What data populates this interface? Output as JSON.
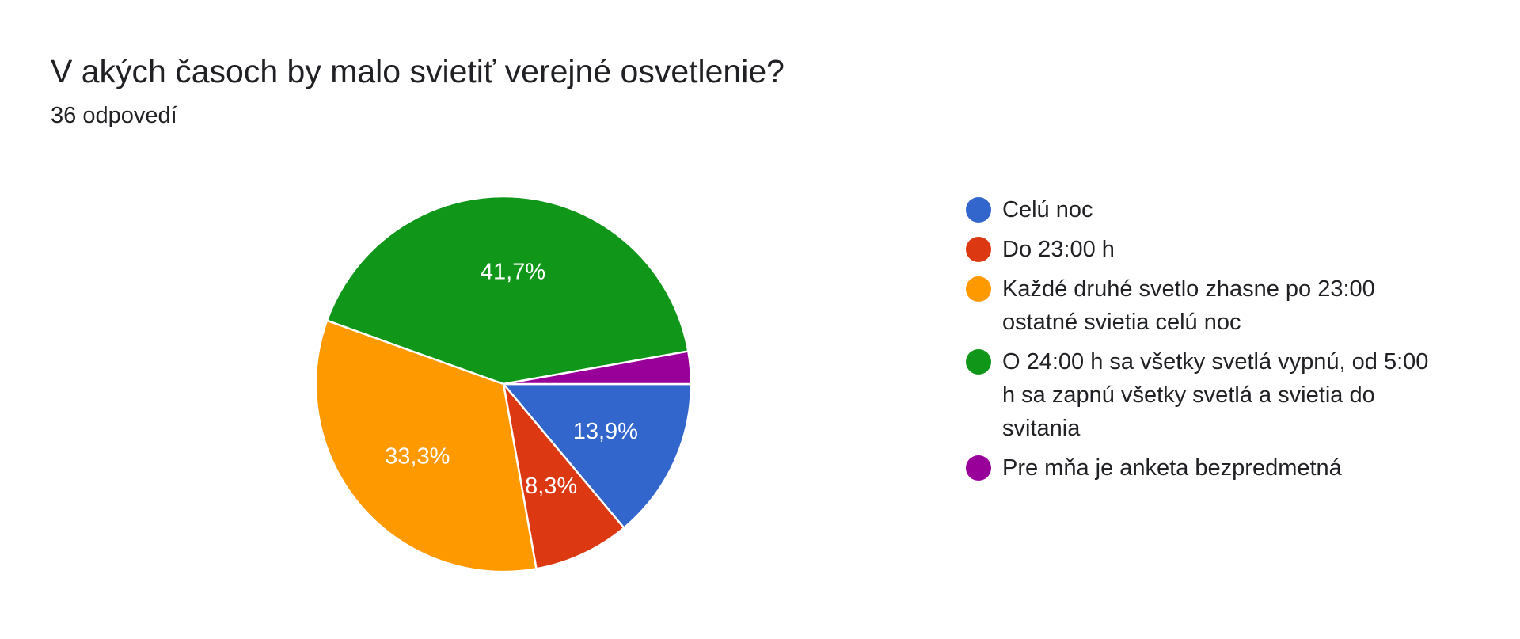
{
  "header": {
    "title": "V akých časoch by malo svietiť verejné osvetlenie?",
    "subtitle": "36 odpovedí"
  },
  "chart_data": {
    "type": "pie",
    "title": "V akých časoch by malo svietiť verejné osvetlenie?",
    "subtitle": "36 odpovedí",
    "legend_position": "right",
    "slices": [
      {
        "label": "Celú noc",
        "value": 13.9,
        "display": "13,9%",
        "color": "#3366cc"
      },
      {
        "label": "Do 23:00 h",
        "value": 8.3,
        "display": "8,3%",
        "color": "#dc3912"
      },
      {
        "label": "Každé druhé svetlo zhasne po 23:00 ostatné svietia celú noc",
        "value": 33.3,
        "display": "33,3%",
        "color": "#ff9900"
      },
      {
        "label": "O 24:00 h sa všetky svetlá vypnú, od 5:00 h sa zapnú všetky svetlá a svietia do svitania",
        "value": 41.7,
        "display": "41,7%",
        "color": "#109618"
      },
      {
        "label": "Pre mňa je anketa bezpredmetná",
        "value": 2.8,
        "display": "",
        "color": "#990099"
      }
    ]
  }
}
